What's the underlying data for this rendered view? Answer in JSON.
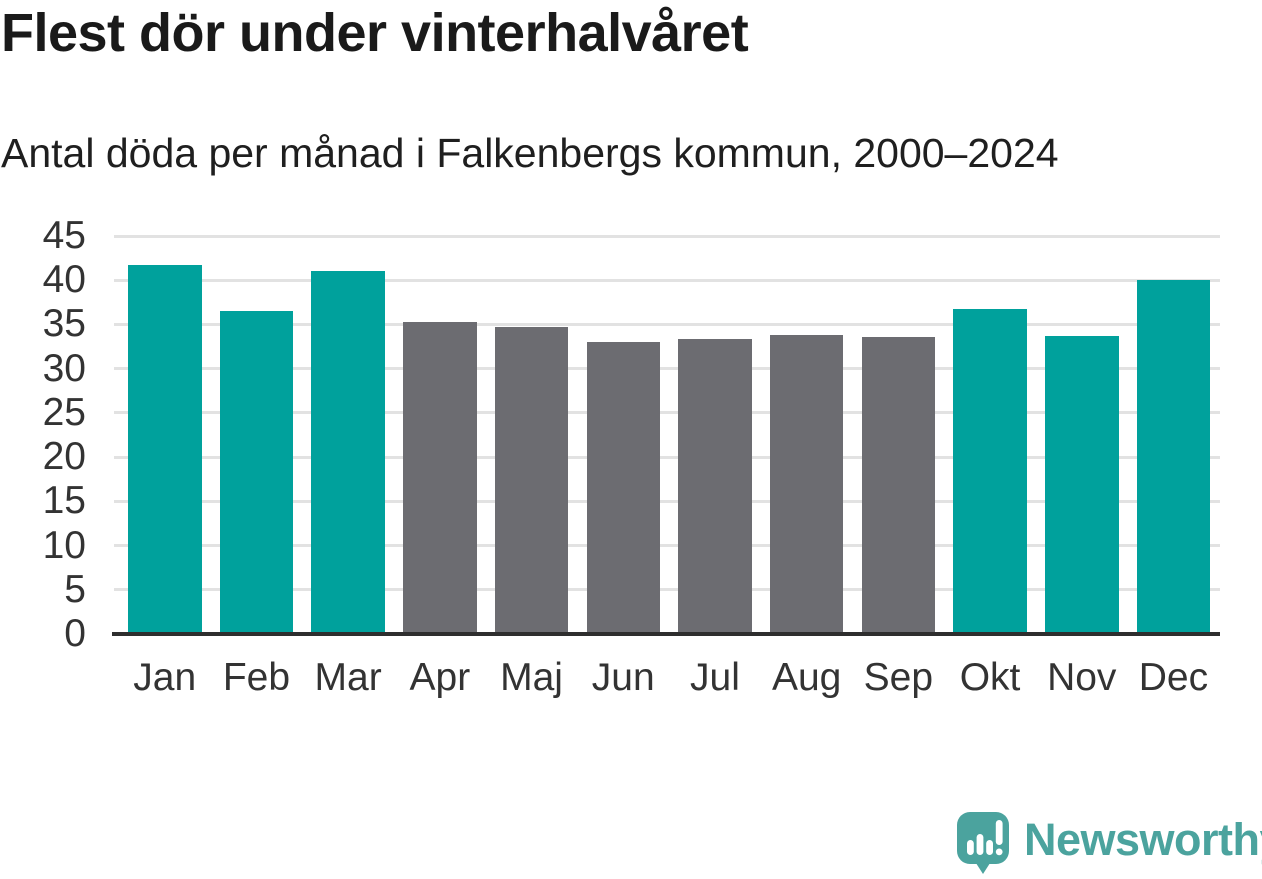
{
  "chart_data": {
    "type": "bar",
    "title": "Flest dör under vinterhalvåret",
    "subtitle": "Antal döda per månad i Falkenbergs kommun, 2000–2024",
    "categories": [
      "Jan",
      "Feb",
      "Mar",
      "Apr",
      "Maj",
      "Jun",
      "Jul",
      "Aug",
      "Sep",
      "Okt",
      "Nov",
      "Dec"
    ],
    "values": [
      41.7,
      36.5,
      41.1,
      35.3,
      34.7,
      33.0,
      33.3,
      33.8,
      33.6,
      36.8,
      33.7,
      40.0
    ],
    "highlight": [
      true,
      true,
      true,
      false,
      false,
      false,
      false,
      false,
      false,
      true,
      true,
      true
    ],
    "highlight_color": "#00a19c",
    "base_color": "#6c6c71",
    "xlabel": "",
    "ylabel": "",
    "ylim": [
      0,
      45
    ],
    "yticks": [
      0,
      5,
      10,
      15,
      20,
      25,
      30,
      35,
      40,
      45
    ],
    "grid": true,
    "legend": false,
    "gridline_color": "#e2e2e2",
    "axis_color": "#2e2e2e"
  },
  "branding": {
    "wordmark": "Newsworthy",
    "logo_color": "#4ba39e",
    "logo_icon": "newsworthy-speech-bubble-bar-chart-icon"
  }
}
